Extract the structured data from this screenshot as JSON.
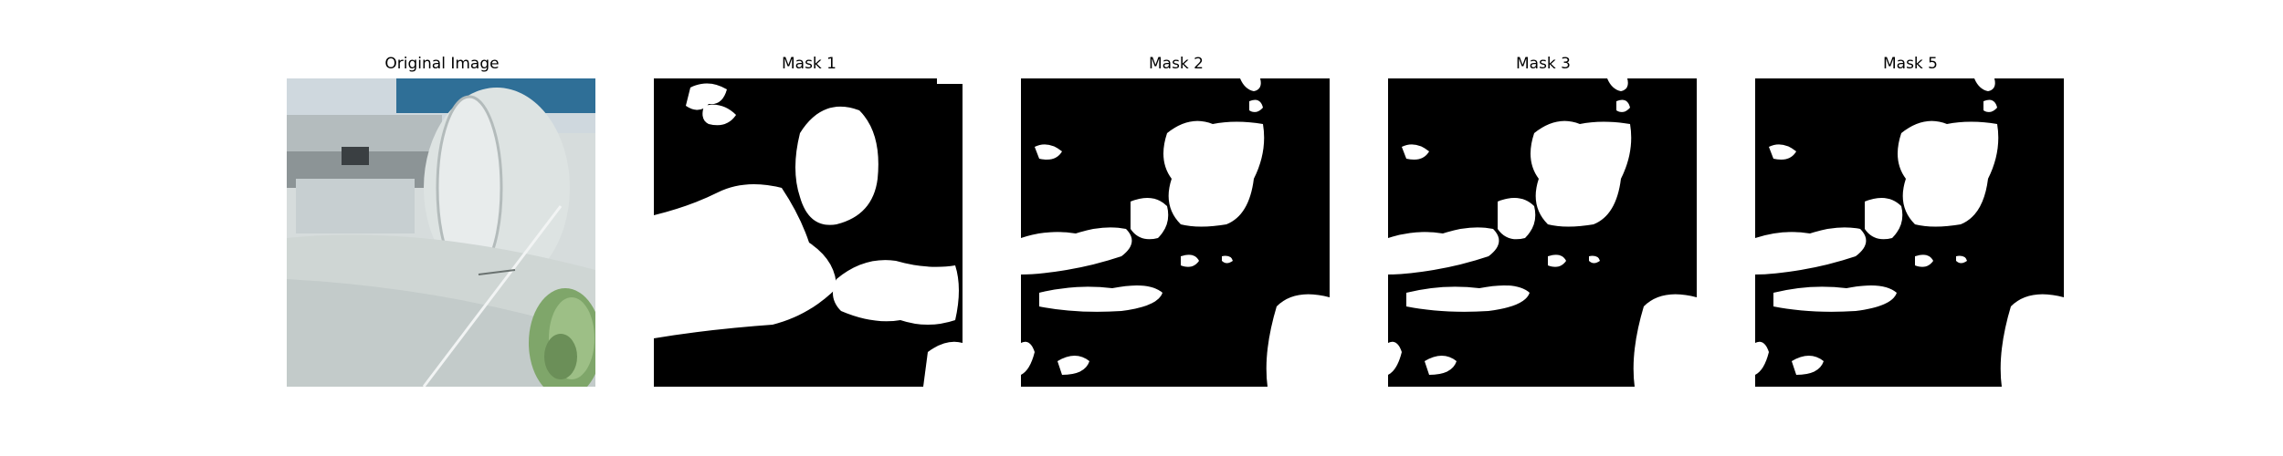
{
  "panels": [
    {
      "title": "Original Image"
    },
    {
      "title": "Mask 1"
    },
    {
      "title": "Mask 2"
    },
    {
      "title": "Mask 3"
    },
    {
      "title": "Mask 5"
    }
  ],
  "colors": {
    "background": "#ffffff",
    "mask_background": "#000000",
    "mask_foreground": "#ffffff",
    "photo_sky": "#c9d6de",
    "photo_machine_body": "#d3dad9",
    "photo_blue_band": "#2f6f97",
    "photo_green_rope": "#7fa66a"
  }
}
